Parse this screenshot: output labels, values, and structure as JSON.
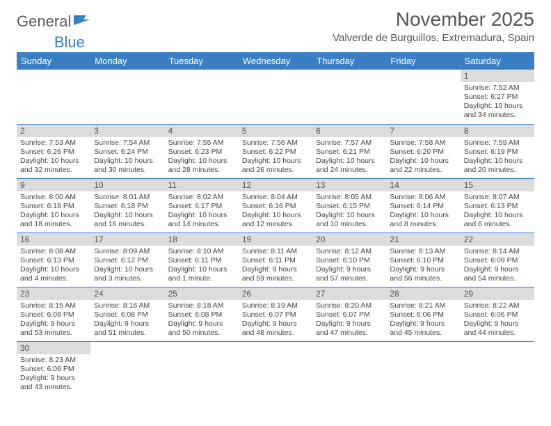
{
  "logo": {
    "text1": "General",
    "text2": "Blue"
  },
  "title": "November 2025",
  "location": "Valverde de Burguillos, Extremadura, Spain",
  "colors": {
    "header_bg": "#3a7fc4",
    "header_text": "#ffffff",
    "daynum_bg": "#dcdcdc",
    "rule": "#3a7fc4",
    "body_text": "#444444",
    "title_text": "#555555"
  },
  "typography": {
    "title_fontsize": 28,
    "location_fontsize": 15,
    "dayhead_fontsize": 13,
    "cell_fontsize": 10.5
  },
  "weekdays": [
    "Sunday",
    "Monday",
    "Tuesday",
    "Wednesday",
    "Thursday",
    "Friday",
    "Saturday"
  ],
  "weeks": [
    [
      null,
      null,
      null,
      null,
      null,
      null,
      {
        "n": "1",
        "sr": "Sunrise: 7:52 AM",
        "ss": "Sunset: 6:27 PM",
        "dl": "Daylight: 10 hours and 34 minutes."
      }
    ],
    [
      {
        "n": "2",
        "sr": "Sunrise: 7:53 AM",
        "ss": "Sunset: 6:26 PM",
        "dl": "Daylight: 10 hours and 32 minutes."
      },
      {
        "n": "3",
        "sr": "Sunrise: 7:54 AM",
        "ss": "Sunset: 6:24 PM",
        "dl": "Daylight: 10 hours and 30 minutes."
      },
      {
        "n": "4",
        "sr": "Sunrise: 7:55 AM",
        "ss": "Sunset: 6:23 PM",
        "dl": "Daylight: 10 hours and 28 minutes."
      },
      {
        "n": "5",
        "sr": "Sunrise: 7:56 AM",
        "ss": "Sunset: 6:22 PM",
        "dl": "Daylight: 10 hours and 26 minutes."
      },
      {
        "n": "6",
        "sr": "Sunrise: 7:57 AM",
        "ss": "Sunset: 6:21 PM",
        "dl": "Daylight: 10 hours and 24 minutes."
      },
      {
        "n": "7",
        "sr": "Sunrise: 7:58 AM",
        "ss": "Sunset: 6:20 PM",
        "dl": "Daylight: 10 hours and 22 minutes."
      },
      {
        "n": "8",
        "sr": "Sunrise: 7:59 AM",
        "ss": "Sunset: 6:19 PM",
        "dl": "Daylight: 10 hours and 20 minutes."
      }
    ],
    [
      {
        "n": "9",
        "sr": "Sunrise: 8:00 AM",
        "ss": "Sunset: 6:18 PM",
        "dl": "Daylight: 10 hours and 18 minutes."
      },
      {
        "n": "10",
        "sr": "Sunrise: 8:01 AM",
        "ss": "Sunset: 6:18 PM",
        "dl": "Daylight: 10 hours and 16 minutes."
      },
      {
        "n": "11",
        "sr": "Sunrise: 8:02 AM",
        "ss": "Sunset: 6:17 PM",
        "dl": "Daylight: 10 hours and 14 minutes."
      },
      {
        "n": "12",
        "sr": "Sunrise: 8:04 AM",
        "ss": "Sunset: 6:16 PM",
        "dl": "Daylight: 10 hours and 12 minutes."
      },
      {
        "n": "13",
        "sr": "Sunrise: 8:05 AM",
        "ss": "Sunset: 6:15 PM",
        "dl": "Daylight: 10 hours and 10 minutes."
      },
      {
        "n": "14",
        "sr": "Sunrise: 8:06 AM",
        "ss": "Sunset: 6:14 PM",
        "dl": "Daylight: 10 hours and 8 minutes."
      },
      {
        "n": "15",
        "sr": "Sunrise: 8:07 AM",
        "ss": "Sunset: 6:13 PM",
        "dl": "Daylight: 10 hours and 6 minutes."
      }
    ],
    [
      {
        "n": "16",
        "sr": "Sunrise: 8:08 AM",
        "ss": "Sunset: 6:13 PM",
        "dl": "Daylight: 10 hours and 4 minutes."
      },
      {
        "n": "17",
        "sr": "Sunrise: 8:09 AM",
        "ss": "Sunset: 6:12 PM",
        "dl": "Daylight: 10 hours and 3 minutes."
      },
      {
        "n": "18",
        "sr": "Sunrise: 8:10 AM",
        "ss": "Sunset: 6:11 PM",
        "dl": "Daylight: 10 hours and 1 minute."
      },
      {
        "n": "19",
        "sr": "Sunrise: 8:11 AM",
        "ss": "Sunset: 6:11 PM",
        "dl": "Daylight: 9 hours and 59 minutes."
      },
      {
        "n": "20",
        "sr": "Sunrise: 8:12 AM",
        "ss": "Sunset: 6:10 PM",
        "dl": "Daylight: 9 hours and 57 minutes."
      },
      {
        "n": "21",
        "sr": "Sunrise: 8:13 AM",
        "ss": "Sunset: 6:10 PM",
        "dl": "Daylight: 9 hours and 56 minutes."
      },
      {
        "n": "22",
        "sr": "Sunrise: 8:14 AM",
        "ss": "Sunset: 6:09 PM",
        "dl": "Daylight: 9 hours and 54 minutes."
      }
    ],
    [
      {
        "n": "23",
        "sr": "Sunrise: 8:15 AM",
        "ss": "Sunset: 6:08 PM",
        "dl": "Daylight: 9 hours and 53 minutes."
      },
      {
        "n": "24",
        "sr": "Sunrise: 8:16 AM",
        "ss": "Sunset: 6:08 PM",
        "dl": "Daylight: 9 hours and 51 minutes."
      },
      {
        "n": "25",
        "sr": "Sunrise: 8:18 AM",
        "ss": "Sunset: 6:08 PM",
        "dl": "Daylight: 9 hours and 50 minutes."
      },
      {
        "n": "26",
        "sr": "Sunrise: 8:19 AM",
        "ss": "Sunset: 6:07 PM",
        "dl": "Daylight: 9 hours and 48 minutes."
      },
      {
        "n": "27",
        "sr": "Sunrise: 8:20 AM",
        "ss": "Sunset: 6:07 PM",
        "dl": "Daylight: 9 hours and 47 minutes."
      },
      {
        "n": "28",
        "sr": "Sunrise: 8:21 AM",
        "ss": "Sunset: 6:06 PM",
        "dl": "Daylight: 9 hours and 45 minutes."
      },
      {
        "n": "29",
        "sr": "Sunrise: 8:22 AM",
        "ss": "Sunset: 6:06 PM",
        "dl": "Daylight: 9 hours and 44 minutes."
      }
    ],
    [
      {
        "n": "30",
        "sr": "Sunrise: 8:23 AM",
        "ss": "Sunset: 6:06 PM",
        "dl": "Daylight: 9 hours and 43 minutes."
      },
      null,
      null,
      null,
      null,
      null,
      null
    ]
  ]
}
